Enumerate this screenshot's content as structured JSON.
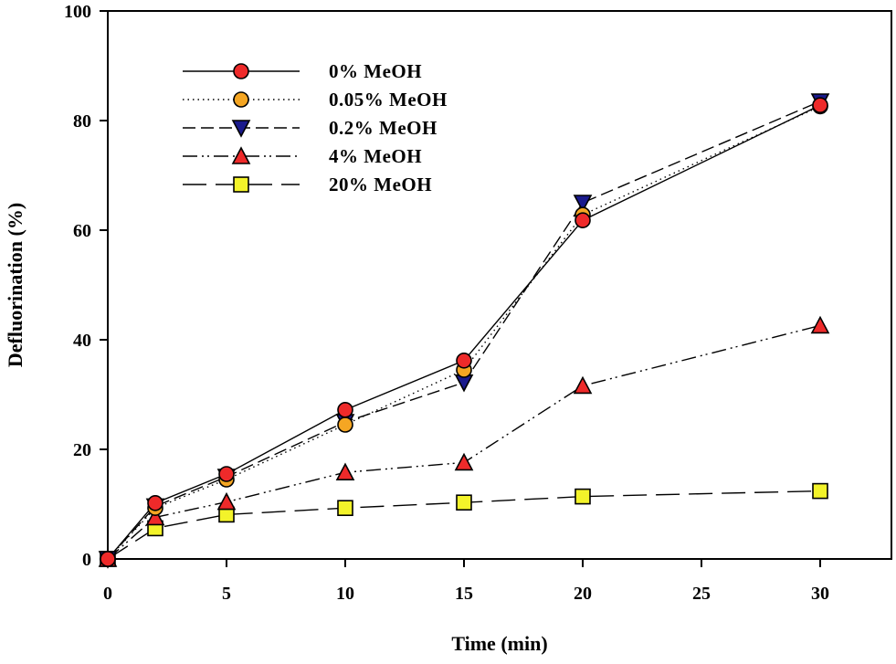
{
  "chart_data": {
    "type": "line",
    "title": "",
    "xlabel": "Time (min)",
    "ylabel": "Defluorination  (%)",
    "xlim": [
      0,
      33
    ],
    "ylim": [
      0,
      100
    ],
    "xticks": [
      0,
      5,
      10,
      15,
      20,
      25,
      30
    ],
    "yticks": [
      0,
      20,
      40,
      60,
      80,
      100
    ],
    "grid": false,
    "legend_position": "top-left",
    "x": [
      0,
      2,
      5,
      10,
      15,
      20,
      30
    ],
    "series": [
      {
        "name": "0% MeOH",
        "marker": "circle",
        "color": "#ee2a2a",
        "line_style": "solid",
        "values": [
          0,
          10.2,
          15.5,
          27.2,
          36.2,
          61.8,
          82.8
        ]
      },
      {
        "name": "0.05% MeOH",
        "marker": "circle",
        "color": "#f5a623",
        "line_style": "dotted",
        "values": [
          0,
          9.3,
          14.5,
          24.5,
          34.5,
          62.8,
          82.6
        ]
      },
      {
        "name": "0.2% MeOH",
        "marker": "triangle-down",
        "color": "#1a1a8c",
        "line_style": "dashed",
        "values": [
          0,
          9.6,
          15.0,
          25.0,
          32.2,
          65.0,
          83.5
        ]
      },
      {
        "name": "4% MeOH",
        "marker": "triangle-up",
        "color": "#ee2a2a",
        "line_style": "dash-dot-dot",
        "values": [
          0,
          7.6,
          10.4,
          15.8,
          17.6,
          31.6,
          42.6
        ]
      },
      {
        "name": "20% MeOH",
        "marker": "square",
        "color": "#f3f32a",
        "line_style": "long-dash",
        "values": [
          0,
          5.6,
          8.1,
          9.3,
          10.3,
          11.4,
          12.4
        ]
      }
    ]
  }
}
